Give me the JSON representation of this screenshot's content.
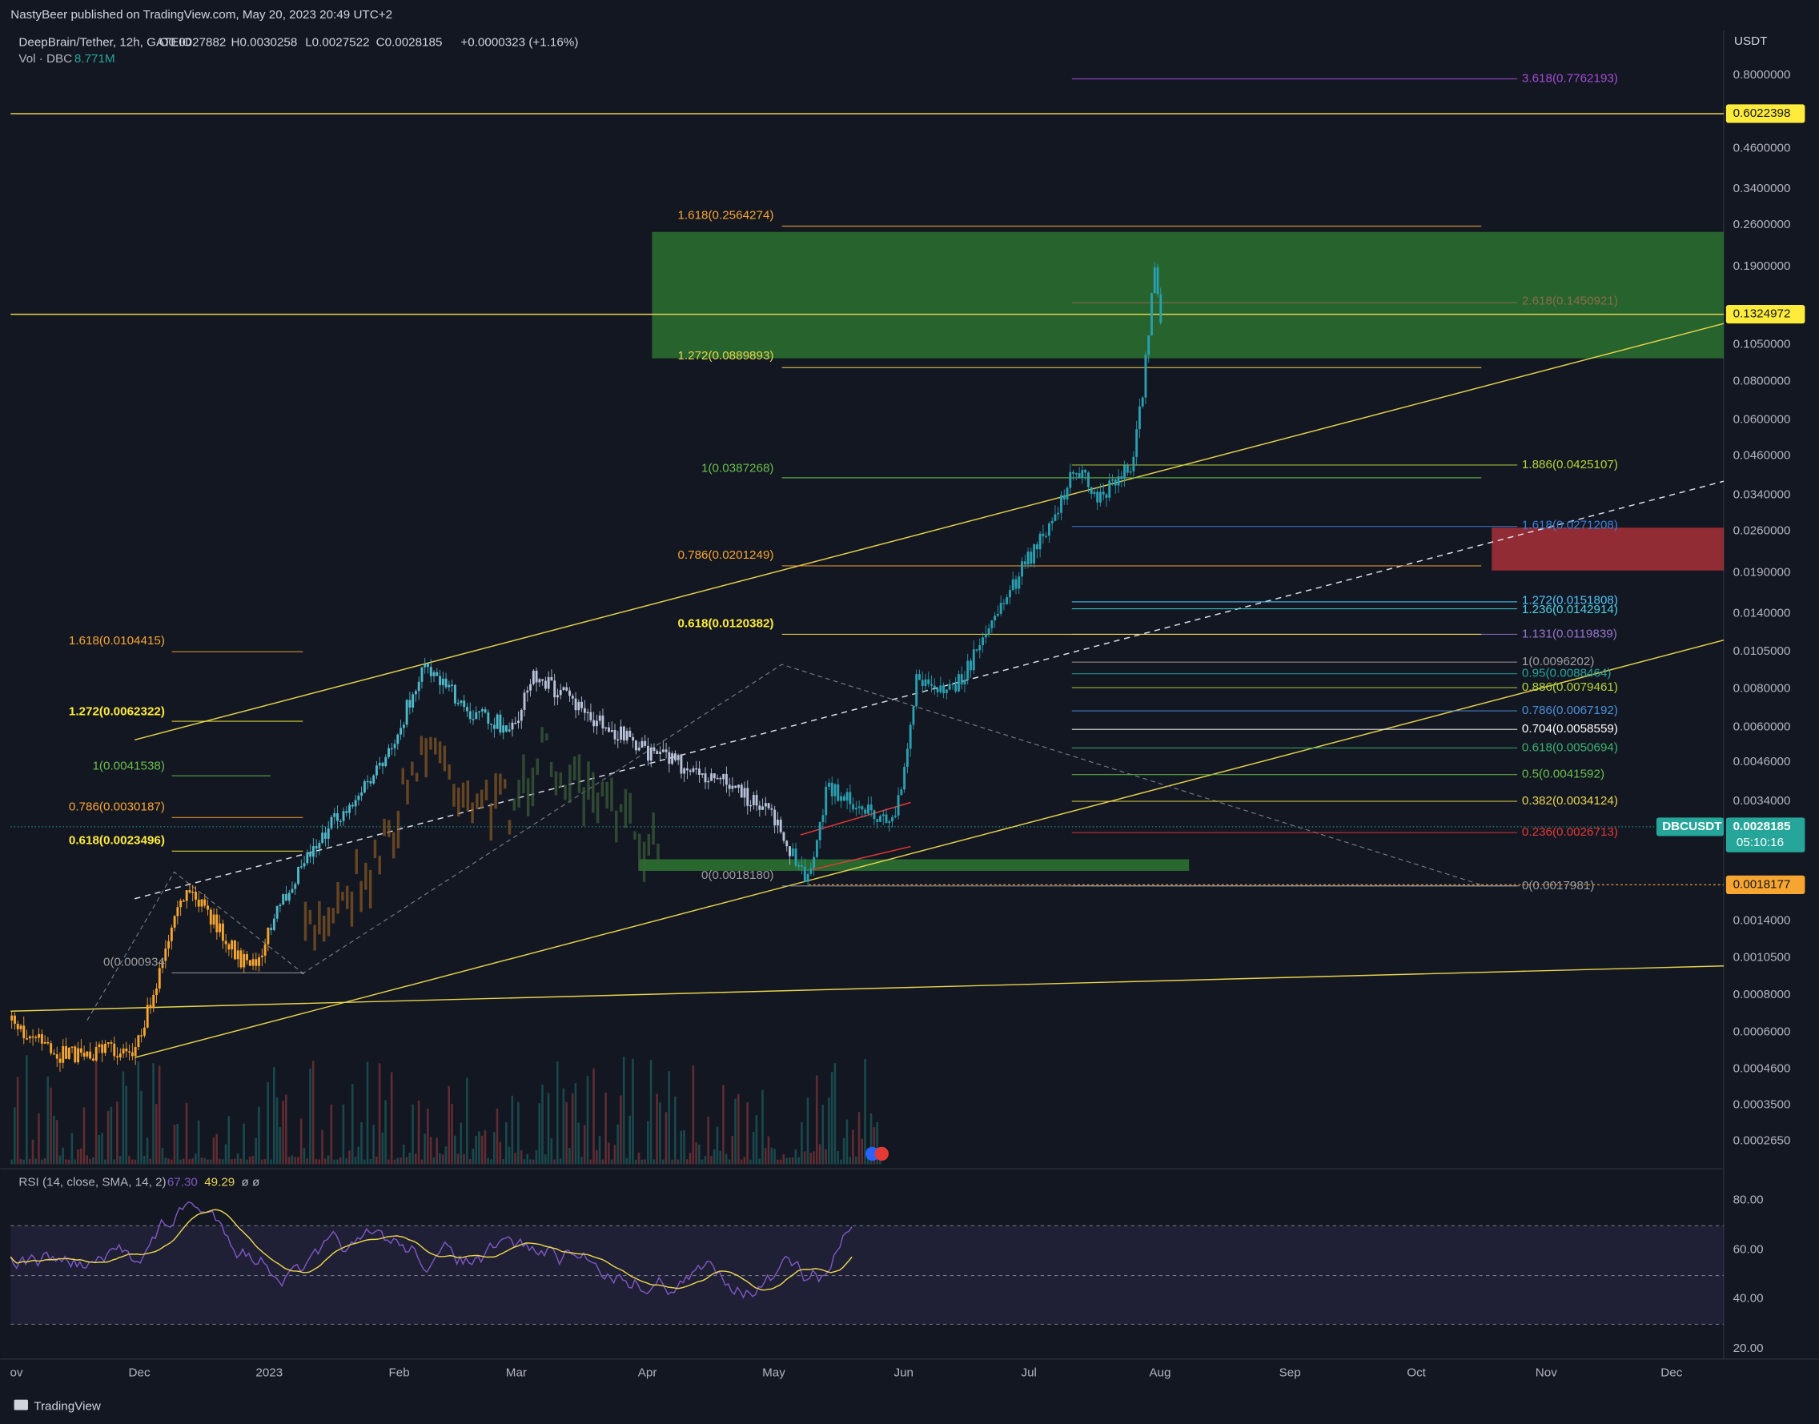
{
  "header": {
    "published": "NastyBeer published on TradingView.com, May 20, 2023 20:49 UTC+2",
    "symbol": "DeepBrain/Tether, 12h, GATEIO",
    "ohlc": [
      "O0.0027882",
      "H0.0030258",
      "L0.0027522",
      "C0.0028185",
      "+0.0000323 (+1.16%)"
    ],
    "volume_label": "Vol · DBC",
    "volume_value": "8.771M"
  },
  "price_axis": {
    "currency": "USDT",
    "labels": [
      "0.8000000",
      "0.4600000",
      "0.3400000",
      "0.2600000",
      "0.1900000",
      "0.1050000",
      "0.0800000",
      "0.0600000",
      "0.0460000",
      "0.0340000",
      "0.0260000",
      "0.0190000",
      "0.0140000",
      "0.0105000",
      "0.0080000",
      "0.0060000",
      "0.0046000",
      "0.0034000",
      "0.0014000",
      "0.0010500",
      "0.0008000",
      "0.0006000",
      "0.0004600",
      "0.0003500",
      "0.0002650"
    ]
  },
  "price_tags": [
    "0.6022398",
    "0.1324972",
    "0.0018177"
  ],
  "symbol_tag": {
    "symbol": "DBCUSDT",
    "price": "0.0028185",
    "countdown": "05:10:16"
  },
  "fib_levels": [
    "3.618(0.7762193)",
    "2.618(0.1450921)",
    "1.886(0.0425107)",
    "1.618(0.0271208)",
    "1.272(0.0151808)",
    "1.236(0.0142914)",
    "1.131(0.0119839)",
    "1(0.0096202)",
    "0.95(0.0088464)",
    "0.886(0.0079461)",
    "0.786(0.0067192)",
    "0.704(0.0058559)",
    "0.618(0.0050694)",
    "0.5(0.0041592)",
    "0.382(0.0034124)",
    "0.236(0.0026713)",
    "0(0.0017981)",
    "1.618(0.2564274)",
    "1.272(0.0889893)",
    "1(0.0387268)",
    "0.786(0.0201249)",
    "0.618(0.0120382)",
    "0(0.0018180)",
    "1.618(0.0104415)",
    "1.272(0.0062322)",
    "1(0.0041538)",
    "0.786(0.0030187)",
    "0.618(0.0023496)",
    "0(0.000934"
  ],
  "rsi": {
    "label": "RSI (14, close, SMA, 14, 2)",
    "value": "67.30",
    "sma": "49.29",
    "extra": "ø ø",
    "axis": [
      "80.00",
      "60.00",
      "40.00",
      "20.00"
    ]
  },
  "time_axis": [
    "ov",
    "Dec",
    "2023",
    "Feb",
    "Mar",
    "Apr",
    "May",
    "Jun",
    "Jul",
    "Aug",
    "Sep",
    "Oct",
    "Nov",
    "Dec"
  ],
  "footer": {
    "brand": "TradingView"
  }
}
